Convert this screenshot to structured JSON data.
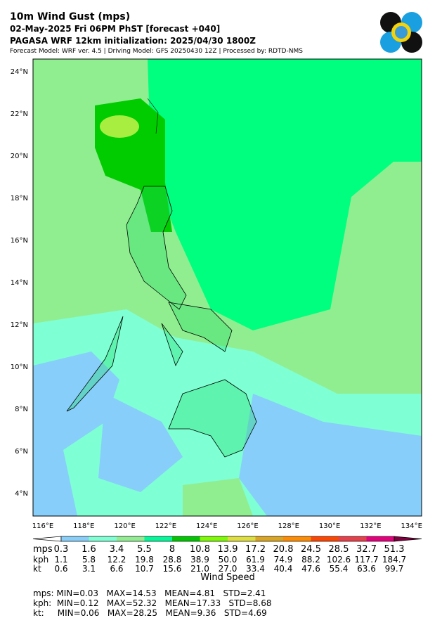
{
  "header": {
    "title": "10m Wind Gust (mps)",
    "subtitle": "02-May-2025 Fri 06PM PhST [forecast +040]",
    "initialization": "PAGASA WRF 12km initialization: 2025/04/30 1800Z",
    "info": "Forecast Model: WRF ver. 4.5 | Driving Model: GFS 20250430 12Z | Processed by: RDTD-NMS"
  },
  "map": {
    "lat_labels": [
      "24°N",
      "22°N",
      "20°N",
      "18°N",
      "16°N",
      "14°N",
      "12°N",
      "10°N",
      "8°N",
      "6°N",
      "4°N"
    ],
    "lon_labels": [
      "116°E",
      "118°E",
      "120°E",
      "122°E",
      "124°E",
      "126°E",
      "128°E",
      "130°E",
      "132°E",
      "134°E"
    ]
  },
  "colorbar": {
    "label": "Wind Speed",
    "colors": [
      "#87cefa",
      "#7fffd4",
      "#90ee90",
      "#00fa9a",
      "#00c800",
      "#7cfc00",
      "#dede3c",
      "#daa520",
      "#ff8c00",
      "#ff4500",
      "#e8404a",
      "#e6007e"
    ],
    "under_color": "#ffffff",
    "over_color": "#800040",
    "rows": [
      {
        "unit": "mps",
        "values": [
          "0.3",
          "1.6",
          "3.4",
          "5.5",
          "8",
          "10.8",
          "13.9",
          "17.2",
          "20.8",
          "24.5",
          "28.5",
          "32.7",
          "51.3"
        ]
      },
      {
        "unit": "kph",
        "values": [
          "1.1",
          "5.8",
          "12.2",
          "19.8",
          "28.8",
          "38.9",
          "50.0",
          "61.9",
          "74.9",
          "88.2",
          "102.6",
          "117.7",
          "184.7"
        ]
      },
      {
        "unit": "kt",
        "values": [
          "0.6",
          "3.1",
          "6.6",
          "10.7",
          "15.6",
          "21.0",
          "27.0",
          "33.4",
          "40.4",
          "47.6",
          "55.4",
          "63.6",
          "99.7"
        ]
      }
    ]
  },
  "stats": [
    "mps: MIN=0.03   MAX=14.53   MEAN=4.81   STD=2.41",
    "kph:  MIN=0.12   MAX=52.32   MEAN=17.33   STD=8.68",
    "kt:     MIN=0.06   MAX=28.25   MEAN=9.36   STD=4.69"
  ]
}
